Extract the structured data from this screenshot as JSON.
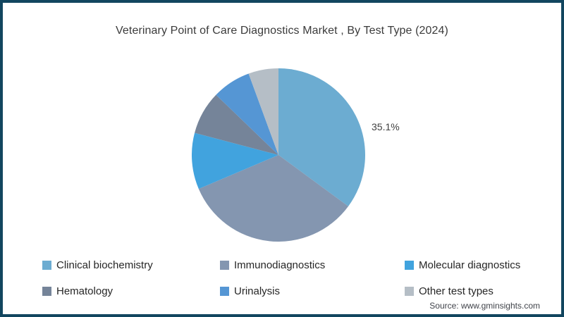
{
  "window": {
    "border_color": "#12465F",
    "background": "#FFFFFF"
  },
  "chart_data": {
    "type": "pie",
    "title": "Veterinary Point of Care Diagnostics Market , By Test Type (2024)",
    "start_angle_deg": 0,
    "direction": "clockwise",
    "unit": "%",
    "legend_position": "bottom",
    "series": [
      {
        "name": "Clinical biochemistry",
        "value": 35.1,
        "color": "#6CACD1",
        "label": "35.1%"
      },
      {
        "name": "Immunodiagnostics",
        "value": 33.5,
        "color": "#8496B0",
        "label": ""
      },
      {
        "name": "Molecular diagnostics",
        "value": 10.5,
        "color": "#41A3DE",
        "label": ""
      },
      {
        "name": "Hematology",
        "value": 8.1,
        "color": "#758499",
        "label": ""
      },
      {
        "name": "Urinalysis",
        "value": 7.2,
        "color": "#5596D4",
        "label": ""
      },
      {
        "name": "Other test types",
        "value": 5.6,
        "color": "#B5BEC6",
        "label": ""
      }
    ]
  },
  "source": {
    "text": "Source: www.gminsights.com"
  }
}
